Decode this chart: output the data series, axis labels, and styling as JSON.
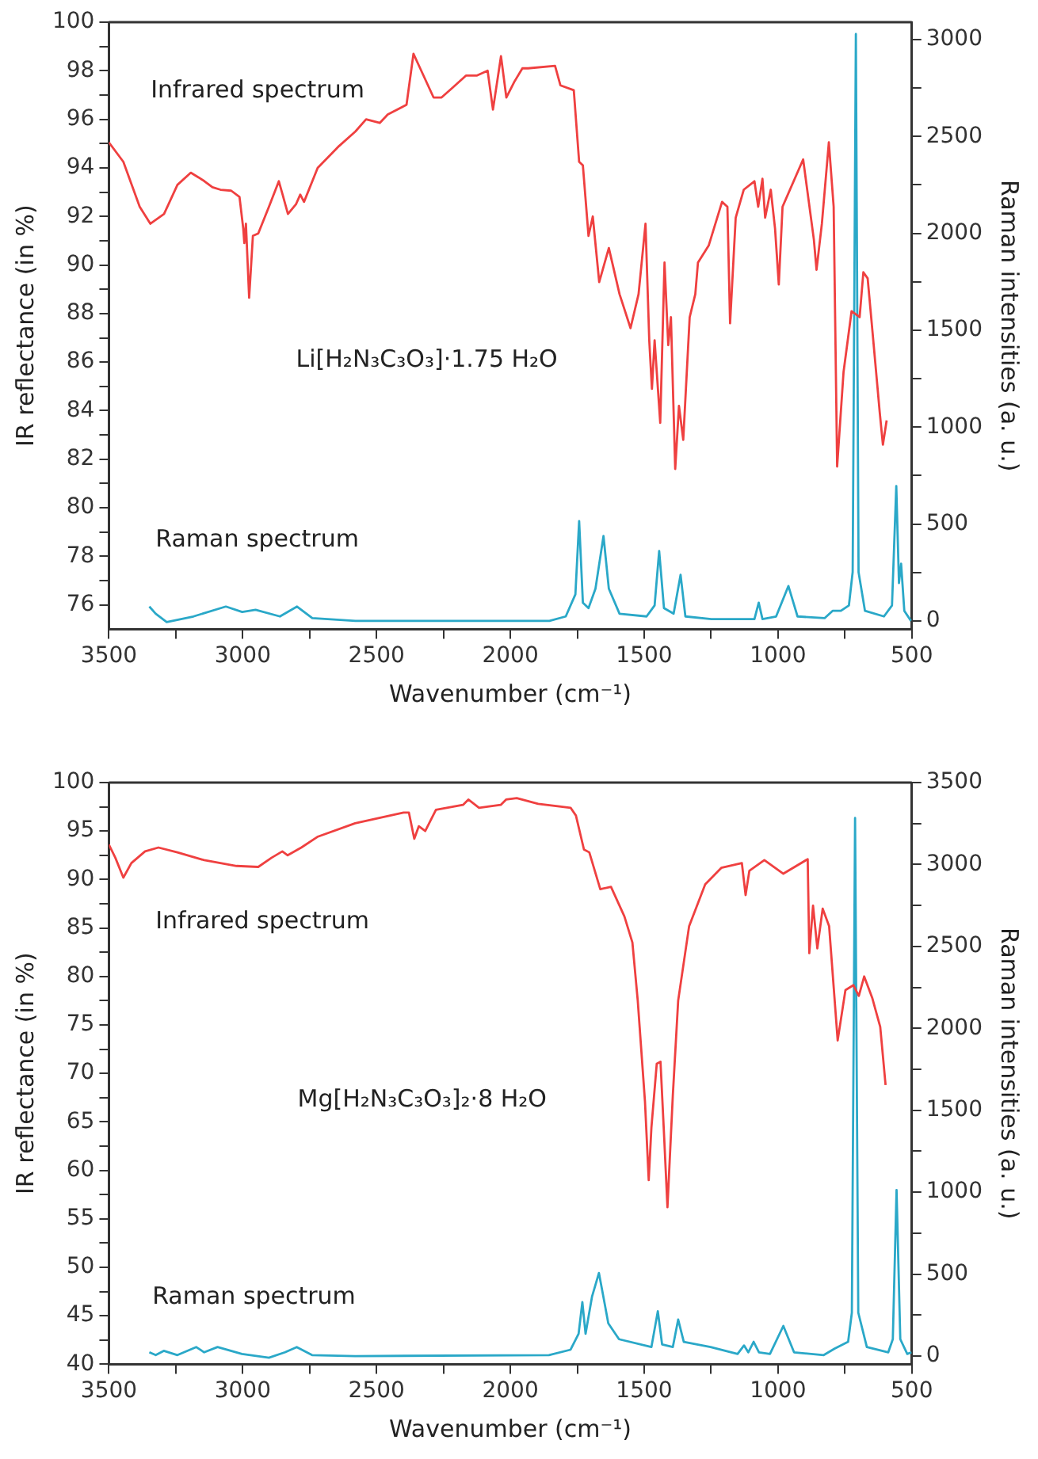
{
  "chart_data": [
    {
      "type": "line",
      "xlabel": "Wavenumber (cm⁻¹)",
      "ylabel": "IR reflectance (in %)",
      "y2label": "Raman intensities (a. u.)",
      "marker": "none",
      "xlim": [
        3500,
        500
      ],
      "xticks": [
        3500,
        {
          "value": 3250,
          "label": null
        },
        3000,
        {
          "value": 2750,
          "label": null
        },
        2500,
        {
          "value": 2250,
          "label": null
        },
        2000,
        {
          "value": 1750,
          "label": null
        },
        1500,
        {
          "value": 1250,
          "label": null
        },
        1000,
        {
          "value": 750,
          "label": null
        },
        500
      ],
      "ylim": [
        75,
        100
      ],
      "yticks": [
        76,
        {
          "value": 77,
          "label": null
        },
        78,
        {
          "value": 79,
          "label": null
        },
        80,
        {
          "value": 81,
          "label": null
        },
        82,
        {
          "value": 83,
          "label": null
        },
        84,
        {
          "value": 85,
          "label": null
        },
        86,
        {
          "value": 87,
          "label": null
        },
        88,
        {
          "value": 89,
          "label": null
        },
        90,
        {
          "value": 91,
          "label": null
        },
        92,
        {
          "value": 93,
          "label": null
        },
        94,
        {
          "value": 95,
          "label": null
        },
        96,
        {
          "value": 97,
          "label": null
        },
        98,
        {
          "value": 99,
          "label": null
        },
        100
      ],
      "y2lim": [
        -43,
        3090
      ],
      "y2ticks": [
        0,
        {
          "value": 250,
          "label": null
        },
        500,
        {
          "value": 750,
          "label": null
        },
        1000,
        {
          "value": 1250,
          "label": null
        },
        1500,
        {
          "value": 1750,
          "label": null
        },
        2000,
        {
          "value": 2250,
          "label": null
        },
        2500,
        {
          "value": 2750,
          "label": null
        },
        3000
      ],
      "annotations": [
        "Li[H₂N₃C₃O₃]·1.75 H₂O"
      ],
      "series": [
        {
          "name": "Infrared spectrum",
          "color": "#ef4040",
          "x": [
            3500,
            3446,
            3385,
            3345,
            3294,
            3244,
            3194,
            3164,
            3143,
            3113,
            3083,
            3043,
            3012,
            2998,
            2994,
            2988,
            2976,
            2962,
            2942,
            2902,
            2865,
            2851,
            2831,
            2801,
            2785,
            2771,
            2720,
            2640,
            2579,
            2539,
            2488,
            2458,
            2388,
            2362,
            2337,
            2287,
            2257,
            2216,
            2166,
            2126,
            2085,
            2065,
            2035,
            2015,
            1985,
            1955,
            1934,
            1833,
            1813,
            1763,
            1743,
            1729,
            1708,
            1692,
            1668,
            1632,
            1592,
            1551,
            1521,
            1495,
            1481,
            1471,
            1461,
            1440,
            1424,
            1410,
            1400,
            1384,
            1370,
            1354,
            1330,
            1309,
            1299,
            1259,
            1209,
            1189,
            1179,
            1158,
            1128,
            1088,
            1074,
            1058,
            1048,
            1027,
            1011,
            997,
            983,
            906,
            866,
            856,
            836,
            810,
            792,
            779,
            755,
            725,
            695,
            681,
            665,
            644,
            620,
            608,
            594
          ],
          "values": [
            95.05,
            94.25,
            92.4,
            91.7,
            92.1,
            93.3,
            93.8,
            93.6,
            93.45,
            93.2,
            93.1,
            93.06,
            92.8,
            91.5,
            90.9,
            91.7,
            88.65,
            91.2,
            91.3,
            92.4,
            93.45,
            92.9,
            92.1,
            92.5,
            92.9,
            92.6,
            94.0,
            94.9,
            95.5,
            96.0,
            95.85,
            96.2,
            96.6,
            98.7,
            98.1,
            96.9,
            96.9,
            97.3,
            97.8,
            97.8,
            98.0,
            96.4,
            98.6,
            96.9,
            97.55,
            98.1,
            98.1,
            98.2,
            97.4,
            97.2,
            94.25,
            94.1,
            91.2,
            92.0,
            89.3,
            90.7,
            88.8,
            87.4,
            88.8,
            91.7,
            86.9,
            84.9,
            86.9,
            83.5,
            90.1,
            86.7,
            87.85,
            81.6,
            84.2,
            82.8,
            87.85,
            88.8,
            90.1,
            90.8,
            92.6,
            92.4,
            87.6,
            91.95,
            93.1,
            93.45,
            92.4,
            93.55,
            91.95,
            93.1,
            91.5,
            89.2,
            92.4,
            94.35,
            91.05,
            89.8,
            91.7,
            95.05,
            92.4,
            81.7,
            85.6,
            88.1,
            87.85,
            89.7,
            89.45,
            86.9,
            83.95,
            82.6,
            83.6
          ]
        },
        {
          "name": "Raman spectrum",
          "color": "#2aa8c8",
          "axis": "y2",
          "x": [
            3349,
            3325,
            3284,
            3184,
            3063,
            3002,
            2952,
            2861,
            2797,
            2740,
            2579,
            1935,
            1854,
            1793,
            1757,
            1743,
            1729,
            1708,
            1682,
            1652,
            1632,
            1592,
            1491,
            1461,
            1444,
            1426,
            1390,
            1364,
            1346,
            1249,
            1088,
            1072,
            1058,
            1007,
            961,
            927,
            826,
            796,
            765,
            735,
            721,
            709,
            699,
            675,
            604,
            574,
            558,
            548,
            540,
            528,
            503
          ],
          "values": [
            74,
            37,
            -6,
            23,
            74,
            46,
            57,
            23,
            74,
            14,
            0,
            0,
            0,
            23,
            137,
            515,
            94,
            66,
            166,
            438,
            166,
            37,
            23,
            80,
            361,
            66,
            37,
            238,
            23,
            9,
            9,
            94,
            9,
            23,
            180,
            23,
            14,
            52,
            52,
            80,
            252,
            3029,
            252,
            52,
            23,
            80,
            696,
            195,
            295,
            52,
            0
          ]
        }
      ]
    },
    {
      "type": "line",
      "xlabel": "Wavenumber (cm⁻¹)",
      "ylabel": "IR reflectance (in %)",
      "y2label": "Raman intensities (a. u.)",
      "marker": "none",
      "xlim": [
        3500,
        500
      ],
      "xticks": [
        3500,
        {
          "value": 3250,
          "label": null
        },
        3000,
        {
          "value": 2750,
          "label": null
        },
        2500,
        {
          "value": 2250,
          "label": null
        },
        2000,
        {
          "value": 1750,
          "label": null
        },
        1500,
        {
          "value": 1250,
          "label": null
        },
        1000,
        {
          "value": 750,
          "label": null
        },
        500
      ],
      "ylim": [
        40,
        100
      ],
      "yticks": [
        40,
        {
          "value": 42.5,
          "label": null
        },
        45,
        {
          "value": 47.5,
          "label": null
        },
        50,
        {
          "value": 52.5,
          "label": null
        },
        55,
        {
          "value": 57.5,
          "label": null
        },
        60,
        {
          "value": 62.5,
          "label": null
        },
        65,
        {
          "value": 67.5,
          "label": null
        },
        70,
        {
          "value": 72.5,
          "label": null
        },
        75,
        {
          "value": 77.5,
          "label": null
        },
        80,
        {
          "value": 82.5,
          "label": null
        },
        85,
        {
          "value": 87.5,
          "label": null
        },
        90,
        {
          "value": 92.5,
          "label": null
        },
        95,
        {
          "value": 97.5,
          "label": null
        },
        100
      ],
      "y2lim": [
        -50,
        3500
      ],
      "y2ticks": [
        0,
        {
          "value": 250,
          "label": null
        },
        500,
        {
          "value": 750,
          "label": null
        },
        1000,
        {
          "value": 1250,
          "label": null
        },
        1500,
        {
          "value": 1750,
          "label": null
        },
        2000,
        {
          "value": 2250,
          "label": null
        },
        2500,
        {
          "value": 2750,
          "label": null
        },
        3000,
        {
          "value": 3250,
          "label": null
        },
        3500
      ],
      "annotations": [
        "Mg[H₂N₃C₃O₃]₂·8 H₂O"
      ],
      "series": [
        {
          "name": "Infrared spectrum",
          "color": "#ef4040",
          "x": [
            3500,
            3476,
            3446,
            3416,
            3365,
            3315,
            3244,
            3144,
            3023,
            2942,
            2892,
            2852,
            2832,
            2781,
            2721,
            2580,
            2399,
            2379,
            2359,
            2342,
            2318,
            2278,
            2177,
            2157,
            2117,
            2036,
            2016,
            1976,
            1896,
            1775,
            1755,
            1725,
            1705,
            1664,
            1624,
            1574,
            1544,
            1524,
            1497,
            1483,
            1473,
            1453,
            1439,
            1427,
            1413,
            1393,
            1373,
            1332,
            1272,
            1212,
            1135,
            1121,
            1107,
            1051,
            980,
            889,
            883,
            869,
            853,
            833,
            809,
            777,
            748,
            718,
            698,
            678,
            648,
            618,
            598
          ],
          "values": [
            93.6,
            92.25,
            90.2,
            91.7,
            92.9,
            93.3,
            92.8,
            92.0,
            91.4,
            91.3,
            92.25,
            92.9,
            92.5,
            93.3,
            94.4,
            95.8,
            96.9,
            96.9,
            94.2,
            95.5,
            95.0,
            97.2,
            97.7,
            98.25,
            97.4,
            97.7,
            98.25,
            98.4,
            97.8,
            97.4,
            96.6,
            93.1,
            92.8,
            89.0,
            89.25,
            86.2,
            83.5,
            77.5,
            67.1,
            59.0,
            64.4,
            71.0,
            71.2,
            64.4,
            56.2,
            67.7,
            77.5,
            85.2,
            89.5,
            91.2,
            91.7,
            88.4,
            90.9,
            92.0,
            90.6,
            92.1,
            82.4,
            87.3,
            82.9,
            87.0,
            85.2,
            73.4,
            78.6,
            79.1,
            78.0,
            80.0,
            77.8,
            74.8,
            68.8
          ]
        },
        {
          "name": "Raman spectrum",
          "color": "#2aa8c8",
          "axis": "y2",
          "x": [
            3349,
            3325,
            3295,
            3244,
            3174,
            3144,
            3094,
            3003,
            2902,
            2842,
            2798,
            2741,
            2580,
            1856,
            1775,
            1745,
            1731,
            1719,
            1695,
            1669,
            1634,
            1594,
            1473,
            1449,
            1433,
            1393,
            1373,
            1352,
            1252,
            1151,
            1127,
            1111,
            1091,
            1071,
            1030,
            980,
            940,
            829,
            789,
            738,
            724,
            712,
            700,
            668,
            588,
            571,
            557,
            543,
            517,
            501
          ],
          "values": [
            23,
            6,
            32,
            6,
            55,
            23,
            55,
            13,
            -10,
            23,
            55,
            6,
            0,
            6,
            39,
            136,
            329,
            136,
            362,
            507,
            200,
            103,
            55,
            274,
            71,
            55,
            223,
            87,
            55,
            13,
            65,
            23,
            87,
            23,
            13,
            184,
            23,
            6,
            45,
            87,
            265,
            3284,
            265,
            55,
            23,
            103,
            1014,
            103,
            13,
            23
          ]
        }
      ]
    }
  ]
}
